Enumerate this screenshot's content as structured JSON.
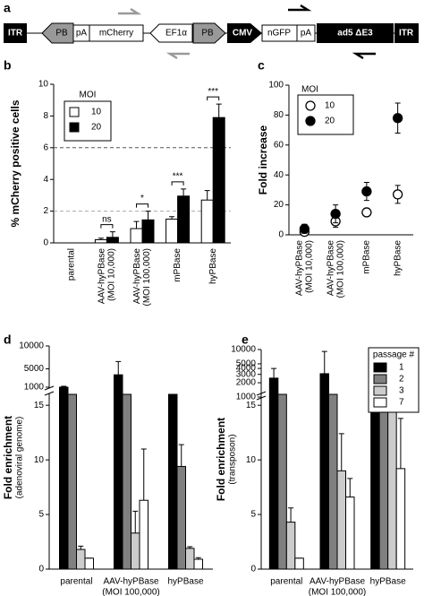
{
  "diagram": {
    "panel": "a",
    "labels": [
      "ITR",
      "PB",
      "pA",
      "mCherry",
      "EF1α",
      "PB",
      "CMV",
      "nGFP",
      "pA",
      "ad5 ΔE3",
      "ITR"
    ]
  },
  "chart_data": [
    {
      "panel": "b",
      "type": "bar",
      "ylabel": "% mCherry positive cells",
      "categories": [
        [
          "parental"
        ],
        [
          "AAV-hyPBase",
          "(MOI 10,000)"
        ],
        [
          "AAV-hyPBase",
          "(MOI 100,000)"
        ],
        [
          "mPBase"
        ],
        [
          "hyPBase"
        ]
      ],
      "legend_title": "MOI",
      "series": [
        {
          "name": "10",
          "color": "#ffffff",
          "values": [
            0,
            0.2,
            0.9,
            1.5,
            2.7
          ],
          "errors": [
            0,
            0.1,
            0.45,
            0.15,
            0.6
          ]
        },
        {
          "name": "20",
          "color": "#000000",
          "values": [
            0,
            0.35,
            1.45,
            2.95,
            7.9
          ],
          "errors": [
            0,
            0.35,
            0.55,
            0.45,
            0.85
          ]
        }
      ],
      "ylim": [
        0,
        10
      ],
      "yticks": [
        0,
        2,
        4,
        6,
        8,
        10
      ],
      "hlines": [
        {
          "value": 6,
          "color": "#555555"
        },
        {
          "value": 2,
          "color": "#aaaaaa"
        }
      ],
      "significance": [
        {
          "category": 1,
          "label": "ns"
        },
        {
          "category": 2,
          "label": "*"
        },
        {
          "category": 3,
          "label": "***"
        },
        {
          "category": 4,
          "label": "***"
        }
      ]
    },
    {
      "panel": "c",
      "type": "dot",
      "ylabel": "Fold increase",
      "categories": [
        [
          "AAV-hyPBase",
          "(MOI 10,000)"
        ],
        [
          "AAV-hyPBase",
          "(MOI 100,000)"
        ],
        [
          "mPBase"
        ],
        [
          "hyPBase"
        ]
      ],
      "legend_title": "MOI",
      "series": [
        {
          "name": "10",
          "color": "#ffffff",
          "values": [
            2,
            9,
            15,
            27
          ],
          "errors": [
            1,
            4,
            0,
            6
          ]
        },
        {
          "name": "20",
          "color": "#000000",
          "values": [
            4,
            14,
            29,
            78
          ],
          "errors": [
            3,
            6,
            6,
            10
          ]
        }
      ],
      "ylim": [
        0,
        100
      ],
      "yticks": [
        0,
        20,
        40,
        60,
        80,
        100
      ]
    },
    {
      "panel": "d",
      "type": "bar",
      "ylabel": [
        "Fold enrichment",
        "(adenoviral genome)"
      ],
      "categories": [
        [
          "parental"
        ],
        [
          "AAV-hyPBase",
          "(MOI 100,000)"
        ],
        [
          "hyPBase"
        ]
      ],
      "series": [
        {
          "color": "#000000",
          "values": [
            1000,
            3700,
            16
          ],
          "errors": [
            200,
            2900,
            0
          ]
        },
        {
          "color": "#808080",
          "values": [
            16,
            16,
            9.4
          ],
          "errors": [
            0,
            0,
            2
          ]
        },
        {
          "color": "#cccccc",
          "values": [
            1.8,
            3.3,
            1.9
          ],
          "errors": [
            0.3,
            2,
            0.15
          ]
        },
        {
          "color": "#ffffff",
          "values": [
            1,
            6.3,
            0.9
          ],
          "errors": [
            0,
            4.7,
            0.15
          ]
        }
      ],
      "ylim": [
        0,
        10000
      ],
      "ybreak": [
        16,
        1000
      ],
      "upper_scale": "linear",
      "yticks": [
        0,
        5,
        10,
        15,
        1000,
        5000,
        10000
      ]
    },
    {
      "panel": "e",
      "type": "bar",
      "ylabel": [
        "Fold enrichment",
        "(transposon)"
      ],
      "categories": [
        [
          "parental"
        ],
        [
          "AAV-hyPBase",
          "(MOI 100,000)"
        ],
        [
          "hyPBase"
        ]
      ],
      "legend_title": "passage #",
      "series": [
        {
          "name": "1",
          "color": "#000000",
          "values": [
            2500,
            3100,
            16
          ],
          "errors": [
            1500,
            6000,
            0
          ]
        },
        {
          "name": "2",
          "color": "#808080",
          "values": [
            16,
            16,
            16
          ],
          "errors": [
            0,
            0,
            0
          ]
        },
        {
          "name": "3",
          "color": "#cccccc",
          "values": [
            4.3,
            9,
            16
          ],
          "errors": [
            1.3,
            3.4,
            0
          ]
        },
        {
          "name": "7",
          "color": "#ffffff",
          "values": [
            1,
            6.6,
            9.2
          ],
          "errors": [
            0,
            1.7,
            4.6
          ]
        }
      ],
      "ylim": [
        0,
        10000
      ],
      "ybreak": [
        16,
        1000
      ],
      "upper_scale": "log",
      "yticks": [
        0,
        5,
        10,
        15,
        1000,
        2000,
        3000,
        4000,
        5000,
        10000
      ]
    }
  ]
}
